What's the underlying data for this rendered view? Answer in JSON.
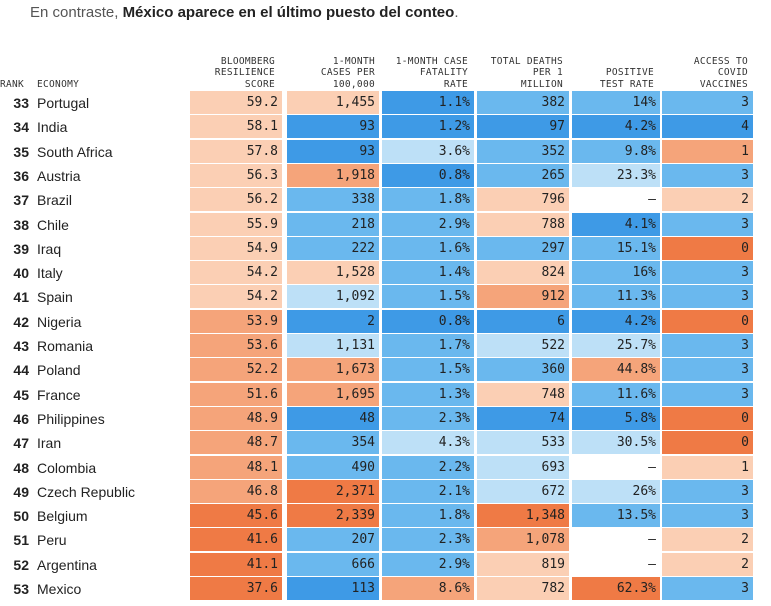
{
  "caption": {
    "prefix": "En contraste, ",
    "bold": "México aparece en el último puesto del conteo",
    "suffix": "."
  },
  "colors": {
    "dark_orange": "#ef7a45",
    "mid_orange": "#f5a47a",
    "light_peach": "#fbcfb4",
    "white": "#ffffff",
    "light_blue": "#bde0f7",
    "mid_blue": "#6ab8ee",
    "blue": "#3e9ae6"
  },
  "chart_data": {
    "type": "table",
    "columns": [
      {
        "key": "rank",
        "label": "RANK"
      },
      {
        "key": "economy",
        "label": "ECONOMY"
      },
      {
        "key": "resilience",
        "label": "BLOOMBERG\nRESILIENCE\nSCORE"
      },
      {
        "key": "cases",
        "label": "1-MONTH\nCASES PER\n100,000"
      },
      {
        "key": "cfr",
        "label": "1-MONTH CASE\nFATALITY\nRATE"
      },
      {
        "key": "deaths",
        "label": "TOTAL DEATHS\nPER 1\nMILLION"
      },
      {
        "key": "positive",
        "label": "POSITIVE\nTEST RATE"
      },
      {
        "key": "vaccines",
        "label": "ACCESS TO\nCOVID\nVACCINES"
      }
    ],
    "rows": [
      {
        "rank": "33",
        "economy": "Portugal",
        "resilience": "59.2",
        "cases": "1,455",
        "cfr": "1.1%",
        "deaths": "382",
        "positive": "14%",
        "vaccines": "3"
      },
      {
        "rank": "34",
        "economy": "India",
        "resilience": "58.1",
        "cases": "93",
        "cfr": "1.2%",
        "deaths": "97",
        "positive": "4.2%",
        "vaccines": "4"
      },
      {
        "rank": "35",
        "economy": "South Africa",
        "resilience": "57.8",
        "cases": "93",
        "cfr": "3.6%",
        "deaths": "352",
        "positive": "9.8%",
        "vaccines": "1"
      },
      {
        "rank": "36",
        "economy": "Austria",
        "resilience": "56.3",
        "cases": "1,918",
        "cfr": "0.8%",
        "deaths": "265",
        "positive": "23.3%",
        "vaccines": "3"
      },
      {
        "rank": "37",
        "economy": "Brazil",
        "resilience": "56.2",
        "cases": "338",
        "cfr": "1.8%",
        "deaths": "796",
        "positive": "–",
        "vaccines": "2"
      },
      {
        "rank": "38",
        "economy": "Chile",
        "resilience": "55.9",
        "cases": "218",
        "cfr": "2.9%",
        "deaths": "788",
        "positive": "4.1%",
        "vaccines": "3"
      },
      {
        "rank": "39",
        "economy": "Iraq",
        "resilience": "54.9",
        "cases": "222",
        "cfr": "1.6%",
        "deaths": "297",
        "positive": "15.1%",
        "vaccines": "0"
      },
      {
        "rank": "40",
        "economy": "Italy",
        "resilience": "54.2",
        "cases": "1,528",
        "cfr": "1.4%",
        "deaths": "824",
        "positive": "16%",
        "vaccines": "3"
      },
      {
        "rank": "41",
        "economy": "Spain",
        "resilience": "54.2",
        "cases": "1,092",
        "cfr": "1.5%",
        "deaths": "912",
        "positive": "11.3%",
        "vaccines": "3"
      },
      {
        "rank": "42",
        "economy": "Nigeria",
        "resilience": "53.9",
        "cases": "2",
        "cfr": "0.8%",
        "deaths": "6",
        "positive": "4.2%",
        "vaccines": "0"
      },
      {
        "rank": "43",
        "economy": "Romania",
        "resilience": "53.6",
        "cases": "1,131",
        "cfr": "1.7%",
        "deaths": "522",
        "positive": "25.7%",
        "vaccines": "3"
      },
      {
        "rank": "44",
        "economy": "Poland",
        "resilience": "52.2",
        "cases": "1,673",
        "cfr": "1.5%",
        "deaths": "360",
        "positive": "44.8%",
        "vaccines": "3"
      },
      {
        "rank": "45",
        "economy": "France",
        "resilience": "51.6",
        "cases": "1,695",
        "cfr": "1.3%",
        "deaths": "748",
        "positive": "11.6%",
        "vaccines": "3"
      },
      {
        "rank": "46",
        "economy": "Philippines",
        "resilience": "48.9",
        "cases": "48",
        "cfr": "2.3%",
        "deaths": "74",
        "positive": "5.8%",
        "vaccines": "0"
      },
      {
        "rank": "47",
        "economy": "Iran",
        "resilience": "48.7",
        "cases": "354",
        "cfr": "4.3%",
        "deaths": "533",
        "positive": "30.5%",
        "vaccines": "0"
      },
      {
        "rank": "48",
        "economy": "Colombia",
        "resilience": "48.1",
        "cases": "490",
        "cfr": "2.2%",
        "deaths": "693",
        "positive": "–",
        "vaccines": "1"
      },
      {
        "rank": "49",
        "economy": "Czech Republic",
        "resilience": "46.8",
        "cases": "2,371",
        "cfr": "2.1%",
        "deaths": "672",
        "positive": "26%",
        "vaccines": "3"
      },
      {
        "rank": "50",
        "economy": "Belgium",
        "resilience": "45.6",
        "cases": "2,339",
        "cfr": "1.8%",
        "deaths": "1,348",
        "positive": "13.5%",
        "vaccines": "3"
      },
      {
        "rank": "51",
        "economy": "Peru",
        "resilience": "41.6",
        "cases": "207",
        "cfr": "2.3%",
        "deaths": "1,078",
        "positive": "–",
        "vaccines": "2"
      },
      {
        "rank": "52",
        "economy": "Argentina",
        "resilience": "41.1",
        "cases": "666",
        "cfr": "2.9%",
        "deaths": "819",
        "positive": "–",
        "vaccines": "2"
      },
      {
        "rank": "53",
        "economy": "Mexico",
        "resilience": "37.6",
        "cases": "113",
        "cfr": "8.6%",
        "deaths": "782",
        "positive": "62.3%",
        "vaccines": "3"
      }
    ],
    "cell_colors": {
      "resilience": [
        "light_peach",
        "light_peach",
        "light_peach",
        "light_peach",
        "light_peach",
        "light_peach",
        "light_peach",
        "light_peach",
        "light_peach",
        "mid_orange",
        "mid_orange",
        "mid_orange",
        "mid_orange",
        "mid_orange",
        "mid_orange",
        "mid_orange",
        "mid_orange",
        "dark_orange",
        "dark_orange",
        "dark_orange",
        "dark_orange"
      ],
      "cases": [
        "light_peach",
        "blue",
        "blue",
        "mid_orange",
        "mid_blue",
        "mid_blue",
        "mid_blue",
        "light_peach",
        "light_blue",
        "blue",
        "light_blue",
        "mid_orange",
        "mid_orange",
        "blue",
        "mid_blue",
        "mid_blue",
        "dark_orange",
        "dark_orange",
        "mid_blue",
        "mid_blue",
        "blue"
      ],
      "cfr": [
        "blue",
        "blue",
        "light_blue",
        "blue",
        "mid_blue",
        "mid_blue",
        "mid_blue",
        "mid_blue",
        "mid_blue",
        "blue",
        "mid_blue",
        "mid_blue",
        "mid_blue",
        "mid_blue",
        "light_blue",
        "mid_blue",
        "mid_blue",
        "mid_blue",
        "mid_blue",
        "mid_blue",
        "mid_orange"
      ],
      "deaths": [
        "mid_blue",
        "blue",
        "mid_blue",
        "mid_blue",
        "light_peach",
        "light_peach",
        "mid_blue",
        "light_peach",
        "mid_orange",
        "blue",
        "light_blue",
        "mid_blue",
        "light_peach",
        "blue",
        "light_blue",
        "light_blue",
        "light_blue",
        "dark_orange",
        "mid_orange",
        "light_peach",
        "light_peach"
      ],
      "positive": [
        "mid_blue",
        "blue",
        "mid_blue",
        "light_blue",
        "white",
        "blue",
        "mid_blue",
        "mid_blue",
        "mid_blue",
        "blue",
        "light_blue",
        "mid_orange",
        "mid_blue",
        "blue",
        "light_blue",
        "white",
        "light_blue",
        "mid_blue",
        "white",
        "white",
        "dark_orange"
      ],
      "vaccines": [
        "mid_blue",
        "blue",
        "mid_orange",
        "mid_blue",
        "light_peach",
        "mid_blue",
        "dark_orange",
        "mid_blue",
        "mid_blue",
        "dark_orange",
        "mid_blue",
        "mid_blue",
        "mid_blue",
        "dark_orange",
        "dark_orange",
        "light_peach",
        "mid_blue",
        "mid_blue",
        "light_peach",
        "light_peach",
        "mid_blue"
      ]
    }
  }
}
